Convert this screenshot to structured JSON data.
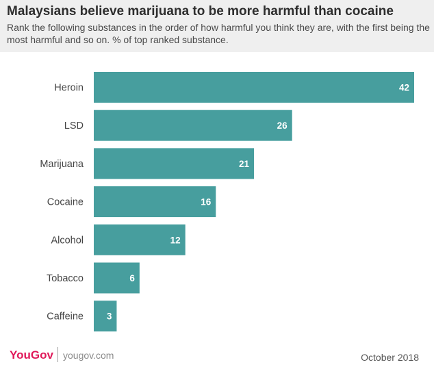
{
  "header": {
    "title": "Malaysians believe marijuana to be more harmful than cocaine",
    "subtitle": "Rank the following substances in the order of how harmful you think they are, with the first being the most harmful and so on. % of top ranked substance."
  },
  "chart_data": {
    "type": "bar",
    "orientation": "horizontal",
    "categories": [
      "Heroin",
      "LSD",
      "Marijuana",
      "Cocaine",
      "Alcohol",
      "Tobacco",
      "Caffeine"
    ],
    "values": [
      42,
      26,
      21,
      16,
      12,
      6,
      3
    ],
    "xlim": [
      0,
      42
    ],
    "bar_color": "#479e9e",
    "label_color": "#ffffff",
    "grid": false,
    "legend": "none"
  },
  "footer": {
    "brand": "YouGov",
    "site": "yougov.com",
    "date": "October 2018"
  },
  "colors": {
    "brand": "#e0195a",
    "bar": "#479e9e",
    "header_bg": "#efefef"
  }
}
